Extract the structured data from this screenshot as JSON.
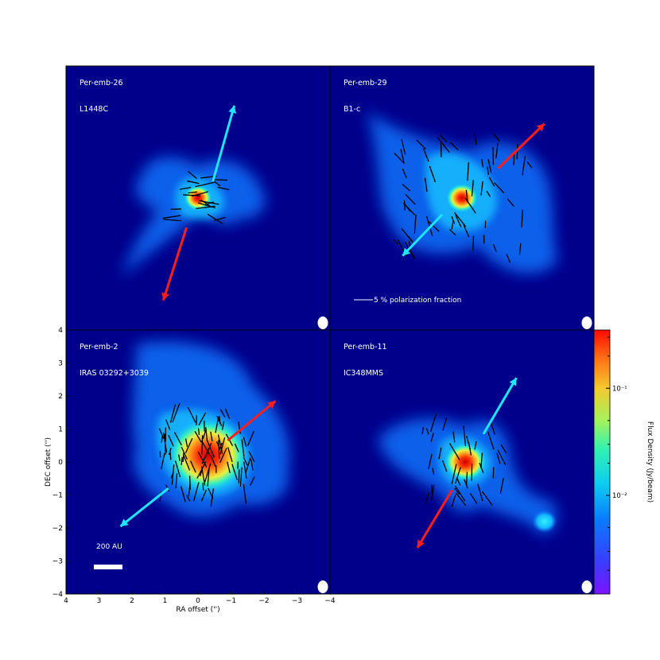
{
  "chart_data": {
    "type": "heatmap",
    "xlabel": "RA offset ('')",
    "ylabel": "DEC offset ('')",
    "xlim": [
      4,
      -4
    ],
    "ylim": [
      -4,
      4
    ],
    "x_ticks": [
      "4",
      "3",
      "2",
      "1",
      "0",
      "−1",
      "−2",
      "−3",
      "−4"
    ],
    "y_ticks": [
      "4",
      "3",
      "2",
      "1",
      "0",
      "−1",
      "−2",
      "−3",
      "−4"
    ],
    "colorbar": {
      "label": "Flux Density (Jy/beam)",
      "scale": "log",
      "tick_labels": [
        "10⁻¹",
        "10⁻²"
      ],
      "tick_values": [
        0.1,
        0.01
      ],
      "range": [
        0.0012,
        0.35
      ]
    },
    "panels": [
      {
        "name": "Per-emb-26",
        "alt_name": "L1448C",
        "sources": [
          {
            "x": 0.0,
            "y": 0.0,
            "peak": 1.0
          }
        ],
        "cyan_arrow": [
          [
            -0.45,
            0.5
          ],
          [
            -1.1,
            2.8
          ]
        ],
        "red_arrow": [
          [
            0.35,
            -0.9
          ],
          [
            1.05,
            -3.1
          ]
        ]
      },
      {
        "name": "Per-emb-29",
        "alt_name": "B1-c",
        "sources": [
          {
            "x": 0.0,
            "y": 0.0,
            "peak": 1.0
          }
        ],
        "cyan_arrow": [
          [
            0.6,
            -0.5
          ],
          [
            1.8,
            -1.75
          ]
        ],
        "red_arrow": [
          [
            -1.1,
            0.9
          ],
          [
            -2.5,
            2.25
          ]
        ],
        "note": "5 % polarization fraction"
      },
      {
        "name": "Per-emb-2",
        "alt_name": "IRAS 03292+3039",
        "sources": [
          {
            "x": -0.3,
            "y": 0.2,
            "peak": 1.0
          }
        ],
        "cyan_arrow": [
          [
            0.9,
            -0.8
          ],
          [
            2.35,
            -1.95
          ]
        ],
        "red_arrow": [
          [
            -0.9,
            0.65
          ],
          [
            -2.35,
            1.85
          ]
        ],
        "scale_bar": "200 AU"
      },
      {
        "name": "Per-emb-11",
        "alt_name": "IC348MMS",
        "sources": [
          {
            "x": -0.1,
            "y": 0.0,
            "peak": 1.0
          },
          {
            "x": -2.5,
            "y": -1.8,
            "peak": 0.09
          }
        ],
        "cyan_arrow": [
          [
            -0.65,
            0.85
          ],
          [
            -1.65,
            2.55
          ]
        ],
        "red_arrow": [
          [
            0.3,
            -0.85
          ],
          [
            1.35,
            -2.6
          ]
        ]
      }
    ]
  }
}
